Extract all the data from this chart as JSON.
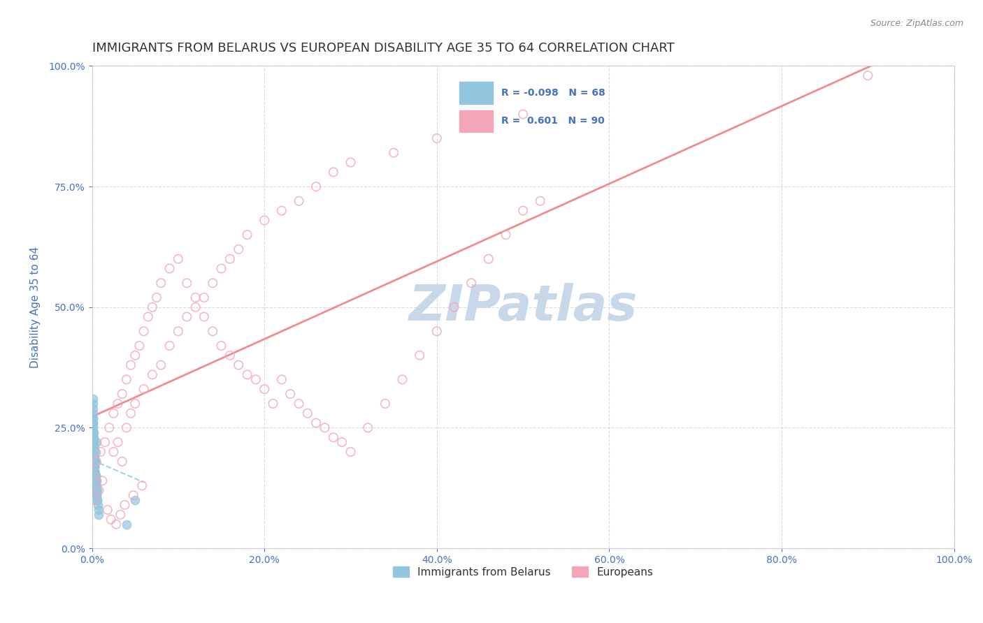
{
  "title": "IMMIGRANTS FROM BELARUS VS EUROPEAN DISABILITY AGE 35 TO 64 CORRELATION CHART",
  "source_text": "Source: ZipAtlas.com",
  "xlabel": "",
  "ylabel": "Disability Age 35 to 64",
  "xmin": 0.0,
  "xmax": 1.0,
  "ymin": 0.0,
  "ymax": 1.0,
  "xtick_labels": [
    "0.0%",
    "100.0%"
  ],
  "ytick_labels": [
    "25.0%",
    "50.0%",
    "75.0%",
    "100.0%"
  ],
  "r_belarus": -0.098,
  "n_belarus": 68,
  "r_european": 0.601,
  "n_european": 90,
  "color_belarus": "#92C5DE",
  "color_european": "#F4A6B8",
  "line_color_belarus": "#92C5DE",
  "line_color_european": "#F08080",
  "background_color": "#FFFFFF",
  "watermark_text": "ZIPatlas",
  "watermark_color": "#C8D8E8",
  "legend_label_belarus": "Immigrants from Belarus",
  "legend_label_european": "Europeans",
  "grid_color": "#CCCCCC",
  "title_color": "#333333",
  "axis_label_color": "#4472C4",
  "belarus_x": [
    0.002,
    0.003,
    0.001,
    0.004,
    0.005,
    0.002,
    0.003,
    0.001,
    0.006,
    0.008,
    0.002,
    0.003,
    0.004,
    0.001,
    0.002,
    0.005,
    0.003,
    0.007,
    0.002,
    0.001,
    0.004,
    0.003,
    0.002,
    0.006,
    0.005,
    0.001,
    0.003,
    0.002,
    0.004,
    0.008,
    0.001,
    0.002,
    0.003,
    0.005,
    0.002,
    0.004,
    0.001,
    0.003,
    0.006,
    0.002,
    0.001,
    0.004,
    0.003,
    0.002,
    0.005,
    0.001,
    0.003,
    0.002,
    0.004,
    0.001,
    0.002,
    0.003,
    0.001,
    0.005,
    0.002,
    0.004,
    0.003,
    0.001,
    0.002,
    0.003,
    0.001,
    0.004,
    0.002,
    0.003,
    0.001,
    0.002,
    0.05,
    0.04
  ],
  "belarus_y": [
    0.15,
    0.18,
    0.12,
    0.2,
    0.22,
    0.16,
    0.14,
    0.25,
    0.1,
    0.08,
    0.19,
    0.17,
    0.13,
    0.28,
    0.21,
    0.11,
    0.16,
    0.09,
    0.24,
    0.3,
    0.18,
    0.15,
    0.22,
    0.12,
    0.14,
    0.26,
    0.17,
    0.2,
    0.13,
    0.07,
    0.23,
    0.19,
    0.16,
    0.11,
    0.21,
    0.14,
    0.27,
    0.18,
    0.1,
    0.22,
    0.29,
    0.15,
    0.17,
    0.2,
    0.12,
    0.25,
    0.16,
    0.23,
    0.14,
    0.31,
    0.2,
    0.18,
    0.24,
    0.13,
    0.22,
    0.15,
    0.19,
    0.27,
    0.21,
    0.16,
    0.26,
    0.14,
    0.2,
    0.17,
    0.23,
    0.19,
    0.1,
    0.05
  ],
  "european_x": [
    0.002,
    0.005,
    0.01,
    0.015,
    0.02,
    0.025,
    0.03,
    0.035,
    0.04,
    0.045,
    0.05,
    0.055,
    0.06,
    0.065,
    0.07,
    0.075,
    0.08,
    0.09,
    0.1,
    0.11,
    0.12,
    0.13,
    0.14,
    0.15,
    0.16,
    0.17,
    0.18,
    0.19,
    0.2,
    0.21,
    0.22,
    0.23,
    0.24,
    0.25,
    0.26,
    0.27,
    0.28,
    0.29,
    0.3,
    0.32,
    0.34,
    0.36,
    0.38,
    0.4,
    0.42,
    0.44,
    0.46,
    0.48,
    0.5,
    0.52,
    0.025,
    0.03,
    0.035,
    0.04,
    0.045,
    0.05,
    0.06,
    0.07,
    0.08,
    0.09,
    0.1,
    0.11,
    0.12,
    0.13,
    0.14,
    0.15,
    0.16,
    0.17,
    0.18,
    0.2,
    0.22,
    0.24,
    0.26,
    0.28,
    0.3,
    0.35,
    0.4,
    0.45,
    0.5,
    0.9,
    0.003,
    0.008,
    0.012,
    0.018,
    0.022,
    0.028,
    0.033,
    0.038,
    0.048,
    0.058
  ],
  "european_y": [
    0.15,
    0.18,
    0.2,
    0.22,
    0.25,
    0.28,
    0.3,
    0.32,
    0.35,
    0.38,
    0.4,
    0.42,
    0.45,
    0.48,
    0.5,
    0.52,
    0.55,
    0.58,
    0.6,
    0.55,
    0.52,
    0.48,
    0.45,
    0.42,
    0.4,
    0.38,
    0.36,
    0.35,
    0.33,
    0.3,
    0.35,
    0.32,
    0.3,
    0.28,
    0.26,
    0.25,
    0.23,
    0.22,
    0.2,
    0.25,
    0.3,
    0.35,
    0.4,
    0.45,
    0.5,
    0.55,
    0.6,
    0.65,
    0.7,
    0.72,
    0.2,
    0.22,
    0.18,
    0.25,
    0.28,
    0.3,
    0.33,
    0.36,
    0.38,
    0.42,
    0.45,
    0.48,
    0.5,
    0.52,
    0.55,
    0.58,
    0.6,
    0.62,
    0.65,
    0.68,
    0.7,
    0.72,
    0.75,
    0.78,
    0.8,
    0.82,
    0.85,
    0.88,
    0.9,
    0.98,
    0.1,
    0.12,
    0.14,
    0.08,
    0.06,
    0.05,
    0.07,
    0.09,
    0.11,
    0.13
  ]
}
